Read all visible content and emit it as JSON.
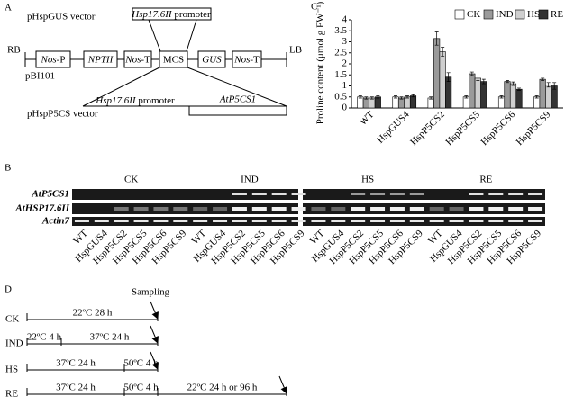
{
  "panel_a": {
    "label": "A",
    "top_vector": "pHspGUS vector",
    "promoter_top": {
      "italic": "Hsp17.6II",
      "plain": " promoter"
    },
    "rb": "RB",
    "lb": "LB",
    "backbone": "pBI101",
    "elements": [
      {
        "italic": "Nos",
        "plain": "-P"
      },
      {
        "italic": "NPTII"
      },
      {
        "italic": "Nos",
        "plain": "-T"
      },
      {
        "plain": "MCS"
      },
      {
        "italic": "GUS"
      },
      {
        "italic": "Nos",
        "plain": "-T"
      }
    ],
    "promoter_bottom": {
      "italic": "Hsp17.6II",
      "plain": " promoter"
    },
    "gene": "AtP5CS1",
    "bottom_vector": "pHspP5CS vector"
  },
  "panel_b": {
    "label": "B",
    "conditions": [
      "CK",
      "IND",
      "HS",
      "RE"
    ],
    "rows": [
      "AtP5CS1",
      "AtHSP17.6II",
      "Actin7"
    ],
    "lanes": [
      "WT",
      "HspGUS4",
      "HspP5CS2",
      "HspP5CS5",
      "HspP5CS6",
      "HspP5CS9",
      "WT",
      "HspGUS4",
      "HspP5CS2",
      "HspP5CS5",
      "HspP5CS6",
      "HspP5CS9",
      "WT",
      "HspGUS4",
      "HspP5CS2",
      "HspP5CS5",
      "HspP5CS6",
      "HspP5CS9",
      "WT",
      "HspGUS4",
      "HspP5CS2",
      "HspP5CS5",
      "HspP5CS6",
      "HspP5CS9"
    ]
  },
  "chart_data": {
    "type": "bar",
    "panel_label": "C",
    "y_label": "Proline content (μmol g FW⁻¹)",
    "categories": [
      "WT",
      "HspGUS4",
      "HspP5CS2",
      "HspP5CS5",
      "HspP5CS6",
      "HspP5CS9"
    ],
    "series": [
      {
        "name": "CK",
        "color": "#ffffff",
        "values": [
          0.5,
          0.5,
          0.45,
          0.5,
          0.5,
          0.5
        ],
        "errors": [
          0.05,
          0.05,
          0.05,
          0.05,
          0.05,
          0.05
        ]
      },
      {
        "name": "IND",
        "color": "#9a9a9a",
        "values": [
          0.45,
          0.45,
          3.15,
          1.55,
          1.2,
          1.3
        ],
        "errors": [
          0.05,
          0.05,
          0.3,
          0.08,
          0.05,
          0.05
        ]
      },
      {
        "name": "HS",
        "color": "#cfcfcf",
        "values": [
          0.45,
          0.5,
          2.55,
          1.35,
          1.1,
          1.05
        ],
        "errors": [
          0.05,
          0.05,
          0.2,
          0.1,
          0.08,
          0.1
        ]
      },
      {
        "name": "RE",
        "color": "#333333",
        "values": [
          0.5,
          0.55,
          1.4,
          1.2,
          0.85,
          1.0
        ],
        "errors": [
          0.05,
          0.05,
          0.2,
          0.1,
          0.05,
          0.15
        ]
      }
    ],
    "ylim": [
      0,
      4
    ],
    "yticks": [
      0,
      0.5,
      1,
      1.5,
      2,
      2.5,
      3,
      3.5,
      4
    ],
    "legend": "top-right"
  },
  "panel_d": {
    "label": "D",
    "sampling": "Sampling",
    "rows": [
      {
        "name": "CK",
        "segments": [
          "22ºC 28 h"
        ]
      },
      {
        "name": "IND",
        "segments": [
          "22ºC 4 h",
          "37ºC 24 h"
        ]
      },
      {
        "name": "HS",
        "segments": [
          "37ºC 24 h",
          "50ºC 4 h"
        ]
      },
      {
        "name": "RE",
        "segments": [
          "37ºC 24 h",
          "50ºC 4 h",
          "22ºC 24 h or 96 h"
        ]
      }
    ]
  }
}
